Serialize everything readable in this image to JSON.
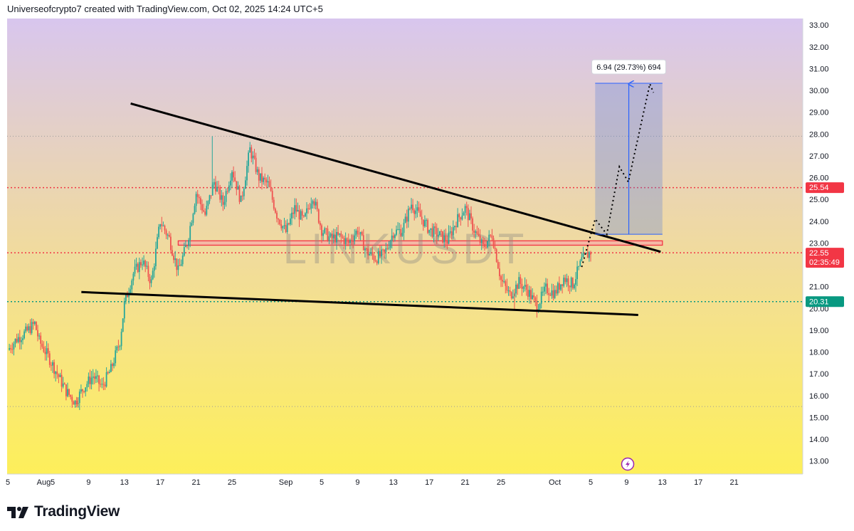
{
  "header": {
    "credit": "Universeofcrypto7 created with TradingView.com, Oct 02, 2025 14:24 UTC+5"
  },
  "footer": {
    "brand": "TradingView"
  },
  "colors": {
    "bull": "#26a69a",
    "bear": "#ef5350",
    "resistance_line": "#f23645",
    "support_line": "#089981",
    "trendline": "#000000",
    "measure_fill": "#5b7fd9",
    "measure_border": "#2962ff",
    "bg_top": "#d8c6ee",
    "bg_bottom": "#fdef5a"
  },
  "chart_data": {
    "type": "candlestick",
    "symbol_watermark": "LINKUSDT",
    "y_axis": {
      "range": [
        12.4,
        33.3
      ],
      "ticks": [
        "33.00",
        "32.00",
        "31.00",
        "30.00",
        "29.00",
        "28.00",
        "27.00",
        "26.00",
        "25.00",
        "24.00",
        "23.00",
        "22.00",
        "21.00",
        "20.00",
        "19.00",
        "18.00",
        "17.00",
        "16.00",
        "15.00",
        "14.00",
        "13.00"
      ]
    },
    "x_axis": {
      "ticks": [
        {
          "label": "5",
          "day": 0
        },
        {
          "label": "Aug",
          "day": 4
        },
        {
          "label": "5",
          "day": 5
        },
        {
          "label": "9",
          "day": 9
        },
        {
          "label": "13",
          "day": 13
        },
        {
          "label": "17",
          "day": 17
        },
        {
          "label": "21",
          "day": 21
        },
        {
          "label": "25",
          "day": 25
        },
        {
          "label": "Sep",
          "day": 31
        },
        {
          "label": "5",
          "day": 35
        },
        {
          "label": "9",
          "day": 39
        },
        {
          "label": "13",
          "day": 43
        },
        {
          "label": "17",
          "day": 47
        },
        {
          "label": "21",
          "day": 51
        },
        {
          "label": "25",
          "day": 55
        },
        {
          "label": "Oct",
          "day": 61
        },
        {
          "label": "5",
          "day": 65
        },
        {
          "label": "9",
          "day": 69
        },
        {
          "label": "13",
          "day": 73
        },
        {
          "label": "17",
          "day": 77
        },
        {
          "label": "21",
          "day": 81
        }
      ]
    },
    "price_path": [
      [
        0,
        18.1
      ],
      [
        1,
        18.6
      ],
      [
        2,
        18.9
      ],
      [
        3,
        19.3
      ],
      [
        3.5,
        18.5
      ],
      [
        4.5,
        17.8
      ],
      [
        5.5,
        17.0
      ],
      [
        6.5,
        16.2
      ],
      [
        7.5,
        15.7
      ],
      [
        8.5,
        16.4
      ],
      [
        9.5,
        16.9
      ],
      [
        10.5,
        16.4
      ],
      [
        11.5,
        17.2
      ],
      [
        12.5,
        18.5
      ],
      [
        13,
        20.2
      ],
      [
        14,
        21.6
      ],
      [
        15,
        22.2
      ],
      [
        16,
        21.2
      ],
      [
        17,
        24.0
      ],
      [
        18,
        23.2
      ],
      [
        19,
        21.7
      ],
      [
        20,
        23.0
      ],
      [
        21,
        25.3
      ],
      [
        22,
        24.3
      ],
      [
        23,
        25.8
      ],
      [
        24,
        24.8
      ],
      [
        25,
        26.4
      ],
      [
        26,
        24.9
      ],
      [
        27,
        27.3
      ],
      [
        28,
        26.0
      ],
      [
        29,
        25.7
      ],
      [
        30,
        24.3
      ],
      [
        31,
        23.5
      ],
      [
        32,
        24.6
      ],
      [
        33,
        24.0
      ],
      [
        34,
        25.2
      ],
      [
        35,
        23.6
      ],
      [
        36,
        23.2
      ],
      [
        37,
        23.3
      ],
      [
        38,
        23.0
      ],
      [
        39,
        23.6
      ],
      [
        40,
        22.6
      ],
      [
        41,
        22.3
      ],
      [
        42,
        22.5
      ],
      [
        43,
        23.5
      ],
      [
        44,
        23.6
      ],
      [
        45,
        24.8
      ],
      [
        46,
        24.2
      ],
      [
        47,
        23.6
      ],
      [
        48,
        23.4
      ],
      [
        49,
        23.1
      ],
      [
        50,
        24.0
      ],
      [
        51,
        24.6
      ],
      [
        52,
        23.6
      ],
      [
        53,
        22.8
      ],
      [
        54,
        23.4
      ],
      [
        55,
        21.3
      ],
      [
        56,
        20.6
      ],
      [
        57,
        21.2
      ],
      [
        58,
        20.8
      ],
      [
        59,
        20.1
      ],
      [
        60,
        20.9
      ],
      [
        61,
        20.7
      ],
      [
        62,
        21.4
      ],
      [
        63,
        21.1
      ],
      [
        64,
        22.2
      ],
      [
        65,
        22.6
      ]
    ],
    "levels": [
      {
        "label": "25.54",
        "value": 25.54,
        "style": "red-dotted"
      },
      {
        "label": "22.55",
        "value": 22.55,
        "style": "red-dotted",
        "countdown": "02:35:49"
      },
      {
        "label": "20.31",
        "value": 20.31,
        "style": "green-dotted"
      }
    ],
    "gray_dotted_levels": [
      27.9,
      15.5
    ],
    "resistance_zone": {
      "from_day": 19,
      "to_day": 73,
      "top": 23.1,
      "bottom": 22.9
    },
    "trendlines": [
      {
        "name": "descending-resistance",
        "from": {
          "day": 13.7,
          "price": 29.4
        },
        "to": {
          "day": 72.8,
          "price": 22.6
        }
      },
      {
        "name": "support",
        "from": {
          "day": 8.2,
          "price": 20.75
        },
        "to": {
          "day": 70.3,
          "price": 19.7
        }
      }
    ],
    "projection_path": [
      [
        64,
        21.9
      ],
      [
        65.5,
        24.1
      ],
      [
        66.8,
        23.4
      ],
      [
        68.2,
        26.5
      ],
      [
        69.2,
        25.8
      ],
      [
        71.6,
        30.3
      ],
      [
        72.0,
        29.9
      ]
    ],
    "measure_box": {
      "from_day": 65.5,
      "to_day": 73,
      "bottom": 23.4,
      "top": 30.33,
      "label": "6.94 (29.73%) 694"
    },
    "annotations": [
      "lightning-event-icon"
    ]
  }
}
